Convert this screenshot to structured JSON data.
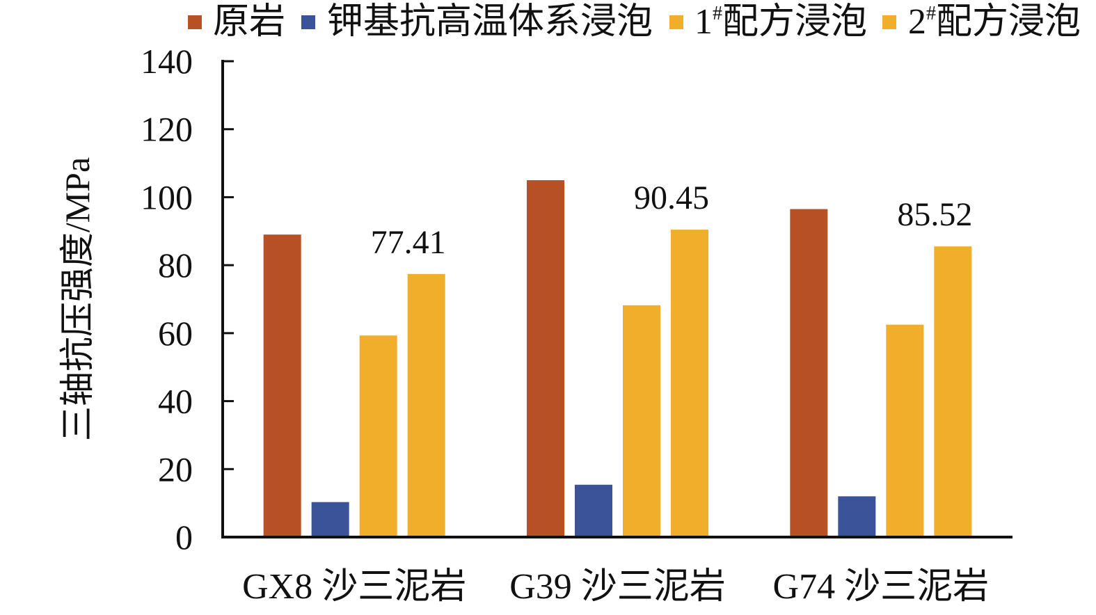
{
  "chart_data": {
    "type": "bar",
    "categories": [
      "GX8 沙三泥岩",
      "G39 沙三泥岩",
      "G74 沙三泥岩"
    ],
    "series": [
      {
        "name": "原岩",
        "values": [
          89,
          105,
          96.5
        ],
        "color": "#B85026"
      },
      {
        "name": "钾基抗高温体系浸泡",
        "values": [
          10.3,
          15.4,
          12
        ],
        "color": "#3B5499"
      },
      {
        "name": "1#配方浸泡",
        "legend_main": "1",
        "legend_sup": "#",
        "legend_rest": "配方浸泡",
        "values": [
          59.3,
          68.2,
          62.5
        ],
        "color": "#F0AE2A"
      },
      {
        "name": "2#配方浸泡",
        "legend_main": "2",
        "legend_sup": "#",
        "legend_rest": "配方浸泡",
        "values": [
          77.41,
          90.45,
          85.52
        ],
        "color": "#F0AE2A"
      }
    ],
    "data_labels": [
      {
        "series": 3,
        "category": 0,
        "text": "77.41"
      },
      {
        "series": 3,
        "category": 1,
        "text": "90.45"
      },
      {
        "series": 3,
        "category": 2,
        "text": "85.52"
      }
    ],
    "ylabel": "三轴抗压强度/MPa",
    "ylim": [
      0,
      140
    ],
    "yticks": [
      "0",
      "20",
      "40",
      "60",
      "80",
      "100",
      "120",
      "140"
    ],
    "grid": false,
    "legend_position": "top"
  }
}
